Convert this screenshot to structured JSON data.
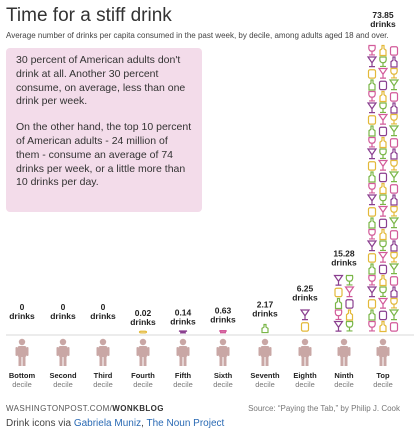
{
  "header": {
    "title": "Time for a stiff drink",
    "subtitle": "Average number of drinks per capita consumed in the past week, by decile, among adults aged 18 and over."
  },
  "note": {
    "para1": "30 percent of American adults don't drink at all. Another 30 percent consume, on average, less than one drink per week.",
    "para2": "On the other hand, the top 10 percent of American adults - 24 million of them - consume an average of 74 drinks per week, or a little more than 10 drinks per day."
  },
  "footer": {
    "source_site": "WASHINGTONPOST.COM/",
    "source_blog": "WONKBLOG",
    "source": "Source: “Paying the Tab,” by Philip J. Cook",
    "icons_credit_prefix": "Drink icons via ",
    "icons_credit_author": "Gabriela Muniz",
    "icons_credit_sep": ", ",
    "icons_credit_project": "The Noun Project"
  },
  "colors": {
    "note_bg": "#f3dcea",
    "person": "#c9a7a5",
    "baseline": "#cccccc",
    "drink_purple": "#8a3f8f",
    "drink_pink": "#d25b9a",
    "drink_green": "#7ab648",
    "drink_yellow": "#e3b93a"
  },
  "chart_data": {
    "type": "bar",
    "title": "Time for a stiff drink",
    "subtitle": "Average number of drinks per capita consumed in the past week, by decile, among adults aged 18 and over.",
    "unit": "drinks",
    "categories": [
      "Bottom",
      "Second",
      "Third",
      "Fourth",
      "Fifth",
      "Sixth",
      "Seventh",
      "Eighth",
      "Ninth",
      "Top"
    ],
    "category_suffix": "decile",
    "values": [
      0,
      0,
      0,
      0.02,
      0.14,
      0.63,
      2.17,
      6.25,
      15.28,
      73.85
    ],
    "value_labels": [
      "0",
      "0",
      "0",
      "0.02",
      "0.14",
      "0.63",
      "2.17",
      "6.25",
      "15.28",
      "73.85"
    ],
    "icon_legend": [
      "cocktail-glass-icon",
      "wine-glass-icon",
      "beer-bottle-icon",
      "beer-can-icon"
    ]
  }
}
